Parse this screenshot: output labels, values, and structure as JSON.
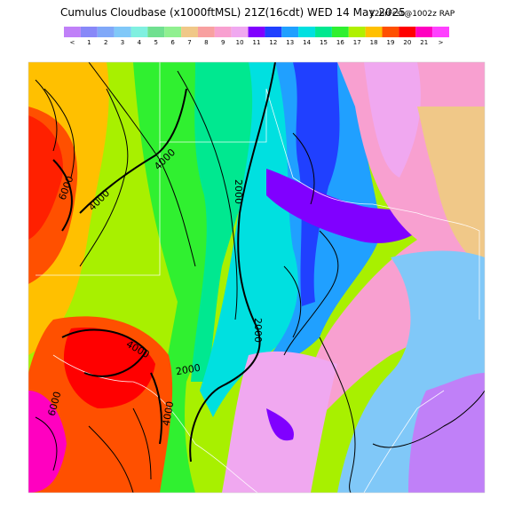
{
  "header": {
    "title": "Cumulus Cloudbase (x1000ftMSL) 21Z(16cdt) WED 14 May 2025",
    "run": "12hrFcst@1002z RAP"
  },
  "legend": {
    "labels": [
      "<",
      "1",
      "2",
      "3",
      "4",
      "5",
      "6",
      "7",
      "8",
      "9",
      "10",
      "11",
      "12",
      "13",
      "14",
      "15",
      "16",
      "17",
      "18",
      "19",
      "20",
      "21",
      ">"
    ],
    "colors": [
      "#c080f8",
      "#8888f8",
      "#80a8f8",
      "#80c8f8",
      "#80f0e0",
      "#70e090",
      "#90f090",
      "#f0c888",
      "#f8a0a0",
      "#f8a0d0",
      "#f0a8f0",
      "#8000ff",
      "#2040ff",
      "#20a0ff",
      "#00e0e0",
      "#00e890",
      "#30f030",
      "#b0f000",
      "#ffc000",
      "#ff5000",
      "#ff0000",
      "#ff00c0",
      "#ff40ff"
    ]
  },
  "contour_labels": [
    "6000",
    "4000",
    "4000",
    "2000",
    "2000",
    "4000",
    "2000",
    "4000",
    "6000"
  ]
}
